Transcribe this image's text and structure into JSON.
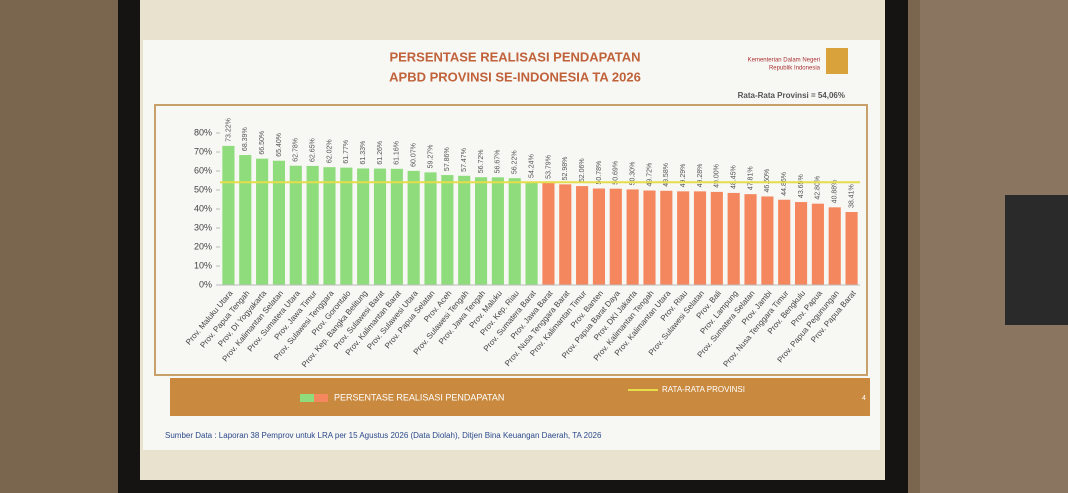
{
  "chart_data": {
    "type": "bar",
    "title": "PERSENTASE REALISASI PENDAPATAN",
    "subtitle": "APBD PROVINSI SE-INDONESIA TA 2026",
    "org_lines": [
      "Kementerian Dalam Negeri",
      "Republik Indonesia"
    ],
    "average": {
      "value": 54.06,
      "label": "Rata-Rata Provinsi = 54,06%",
      "legend": "RATA-RATA PROVINSI",
      "color": "#e6dd4a"
    },
    "categories": [
      "Prov. Maluku Utara",
      "Prov. Papua Tengah",
      "Prov. DI Yogyakarta",
      "Prov. Kalimantan Selatan",
      "Prov. Sumatera Utara",
      "Prov. Jawa Timur",
      "Prov. Sulawesi Tenggara",
      "Prov. Gorontalo",
      "Prov. Kep. Bangka Belitung",
      "Prov. Sulawesi Barat",
      "Prov. Kalimantan Barat",
      "Prov. Sulawesi Utara",
      "Prov. Papua Selatan",
      "Prov. Aceh",
      "Prov. Sulawesi Tengah",
      "Prov. Jawa Tengah",
      "Prov. Maluku",
      "Prov. Kep. Riau",
      "Prov. Sumatera Barat",
      "Prov. Jawa Barat",
      "Prov. Nusa Tenggara Barat",
      "Prov. Kalimantan Timur",
      "Prov. Banten",
      "Prov. Papua Barat Daya",
      "Prov. DKI Jakarta",
      "Prov. Kalimantan Tengah",
      "Prov. Kalimantan Utara",
      "Prov. Riau",
      "Prov. Sulawesi Selatan",
      "Prov. Bali",
      "Prov. Lampung",
      "Prov. Sumatera Selatan",
      "Prov. Jambi",
      "Prov. Nusa Tenggara Timur",
      "Prov. Bengkulu",
      "Prov. Papua",
      "Prov. Papua Pegunungan",
      "Prov. Papua Barat"
    ],
    "series": [
      {
        "name": "PERSENTASE REALISASI PENDAPATAN",
        "color_above": "#8fdc7c",
        "color_below": "#f5875f",
        "values": [
          73.22,
          68.39,
          66.5,
          65.4,
          62.78,
          62.65,
          62.02,
          61.77,
          61.33,
          61.26,
          61.16,
          60.07,
          59.27,
          57.86,
          57.47,
          56.72,
          56.67,
          56.22,
          54.24,
          53.79,
          52.98,
          52.06,
          50.78,
          50.69,
          50.3,
          49.72,
          49.58,
          49.29,
          49.28,
          49.0,
          48.45,
          47.81,
          46.6,
          44.86,
          43.65,
          42.8,
          40.88,
          38.41
        ],
        "value_labels": [
          "73.22%",
          "68.39%",
          "66.50%",
          "65.40%",
          "62.78%",
          "62.65%",
          "62.02%",
          "61.77%",
          "61.33%",
          "61.26%",
          "61.16%",
          "60.07%",
          "59.27%",
          "57.86%",
          "57.47%",
          "56.72%",
          "56.67%",
          "56.22%",
          "54.24%",
          "53.79%",
          "52.98%",
          "52.06%",
          "50.78%",
          "50.69%",
          "50.30%",
          "49.72%",
          "49.58%",
          "49.29%",
          "49.28%",
          "49.00%",
          "48.45%",
          "47.81%",
          "46.60%",
          "44.86%",
          "43.65%",
          "42.80%",
          "40.88%",
          "38.41%"
        ]
      }
    ],
    "ylim": [
      0,
      80
    ],
    "yticks": [
      {
        "value": 0,
        "label": "0%"
      },
      {
        "value": 10,
        "label": "10%"
      },
      {
        "value": 20,
        "label": "20%"
      },
      {
        "value": 30,
        "label": "30%"
      },
      {
        "value": 40,
        "label": "40%"
      },
      {
        "value": 50,
        "label": "50%"
      },
      {
        "value": 60,
        "label": "60%"
      },
      {
        "value": 70,
        "label": "70%"
      },
      {
        "value": 80,
        "label": "80%"
      }
    ],
    "page_number": "4",
    "source": "Sumber Data : Laporan 38 Pemprov untuk LRA per 15 Agustus 2026 (Data Diolah), Ditjen Bina Keuangan Daerah, TA 2026"
  }
}
